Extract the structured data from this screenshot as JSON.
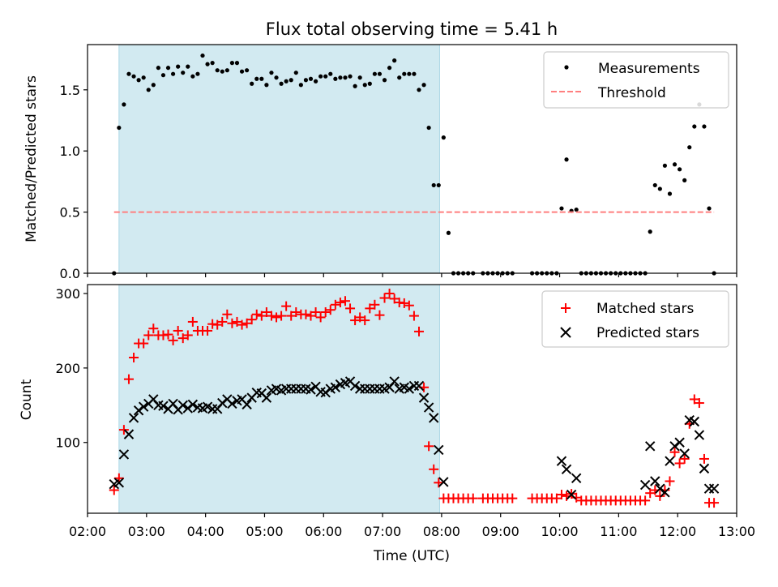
{
  "figure_title": "Flux total observing time = 5.41 h",
  "chart_data": [
    {
      "type": "scatter",
      "ylabel": "Matched/Predicted stars",
      "xlabel": "",
      "xlim": [
        "02:00",
        "13:00"
      ],
      "ylim": [
        0,
        1.87
      ],
      "yticks": [
        0.0,
        0.5,
        1.0,
        1.5
      ],
      "ytick_labels": [
        "0.0",
        "0.5",
        "1.0",
        "1.5"
      ],
      "shaded_interval": [
        "02:32",
        "07:58"
      ],
      "shade_color": "#add8e6",
      "legend_position": "upper right",
      "series": [
        {
          "name": "Measurements",
          "marker": "dot",
          "color": "#000000",
          "x": [
            "02:27",
            "02:32",
            "02:37",
            "02:42",
            "02:47",
            "02:52",
            "02:57",
            "03:02",
            "03:07",
            "03:12",
            "03:17",
            "03:22",
            "03:27",
            "03:32",
            "03:37",
            "03:42",
            "03:47",
            "03:52",
            "03:57",
            "04:02",
            "04:07",
            "04:12",
            "04:17",
            "04:22",
            "04:27",
            "04:32",
            "04:37",
            "04:42",
            "04:47",
            "04:52",
            "04:57",
            "05:02",
            "05:07",
            "05:12",
            "05:17",
            "05:22",
            "05:27",
            "05:32",
            "05:37",
            "05:42",
            "05:47",
            "05:52",
            "05:57",
            "06:02",
            "06:07",
            "06:12",
            "06:17",
            "06:22",
            "06:27",
            "06:32",
            "06:37",
            "06:42",
            "06:47",
            "06:52",
            "06:57",
            "07:02",
            "07:07",
            "07:12",
            "07:17",
            "07:22",
            "07:27",
            "07:32",
            "07:37",
            "07:42",
            "07:47",
            "07:52",
            "07:57",
            "08:02",
            "08:07",
            "08:12",
            "08:17",
            "08:22",
            "08:27",
            "08:32",
            "08:42",
            "08:47",
            "08:52",
            "08:57",
            "09:02",
            "09:07",
            "09:12",
            "09:32",
            "09:37",
            "09:42",
            "09:47",
            "09:52",
            "09:57",
            "10:02",
            "10:07",
            "10:12",
            "10:17",
            "10:22",
            "10:27",
            "10:32",
            "10:37",
            "10:42",
            "10:47",
            "10:52",
            "10:57",
            "11:02",
            "11:07",
            "11:12",
            "11:17",
            "11:22",
            "11:27",
            "11:32",
            "11:37",
            "11:42",
            "11:47",
            "11:52",
            "11:57",
            "12:02",
            "12:07",
            "12:12",
            "12:17",
            "12:22",
            "12:27",
            "12:32",
            "12:37"
          ],
          "y": [
            0.0,
            1.19,
            1.38,
            1.63,
            1.61,
            1.58,
            1.6,
            1.5,
            1.54,
            1.68,
            1.62,
            1.68,
            1.63,
            1.69,
            1.64,
            1.69,
            1.61,
            1.63,
            1.78,
            1.71,
            1.72,
            1.66,
            1.65,
            1.66,
            1.72,
            1.72,
            1.65,
            1.66,
            1.55,
            1.59,
            1.59,
            1.54,
            1.64,
            1.6,
            1.55,
            1.57,
            1.58,
            1.64,
            1.54,
            1.58,
            1.59,
            1.57,
            1.61,
            1.61,
            1.63,
            1.59,
            1.6,
            1.6,
            1.61,
            1.53,
            1.6,
            1.54,
            1.55,
            1.63,
            1.63,
            1.58,
            1.68,
            1.74,
            1.6,
            1.63,
            1.63,
            1.63,
            1.5,
            1.54,
            1.19,
            0.72,
            0.72,
            1.11,
            0.33,
            0.0,
            0.0,
            0.0,
            0.0,
            0.0,
            0.0,
            0.0,
            0.0,
            0.0,
            0.0,
            0.0,
            0.0,
            0.0,
            0.0,
            0.0,
            0.0,
            0.0,
            0.0,
            0.53,
            0.93,
            0.51,
            0.52,
            0.0,
            0.0,
            0.0,
            0.0,
            0.0,
            0.0,
            0.0,
            0.0,
            0.0,
            0.0,
            0.0,
            0.0,
            0.0,
            0.0,
            0.34,
            0.72,
            0.69,
            0.88,
            0.65,
            0.89,
            0.85,
            0.76,
            1.03,
            1.2,
            1.38,
            1.2,
            0.53,
            0.0
          ]
        },
        {
          "name": "Threshold",
          "type": "line",
          "style": "dashed",
          "color": "#ff7f7f",
          "x": [
            "02:27",
            "12:37"
          ],
          "y": [
            0.5,
            0.5
          ]
        }
      ]
    },
    {
      "type": "scatter",
      "ylabel": "Count",
      "xlabel": "Time (UTC)",
      "xlim": [
        "02:00",
        "13:00"
      ],
      "ylim": [
        5,
        312
      ],
      "yticks": [
        100,
        200,
        300
      ],
      "ytick_labels": [
        "100",
        "200",
        "300"
      ],
      "xticks": [
        "02:00",
        "03:00",
        "04:00",
        "05:00",
        "06:00",
        "07:00",
        "08:00",
        "09:00",
        "10:00",
        "11:00",
        "12:00",
        "13:00"
      ],
      "shaded_interval": [
        "02:32",
        "07:58"
      ],
      "shade_color": "#add8e6",
      "legend_position": "upper right",
      "series": [
        {
          "name": "Matched stars",
          "marker": "plus",
          "color": "#ff0000",
          "x": [
            "02:27",
            "02:32",
            "02:37",
            "02:42",
            "02:47",
            "02:52",
            "02:57",
            "03:02",
            "03:07",
            "03:12",
            "03:17",
            "03:22",
            "03:27",
            "03:32",
            "03:37",
            "03:42",
            "03:47",
            "03:52",
            "03:57",
            "04:02",
            "04:07",
            "04:12",
            "04:17",
            "04:22",
            "04:27",
            "04:32",
            "04:37",
            "04:42",
            "04:47",
            "04:52",
            "04:57",
            "05:02",
            "05:07",
            "05:12",
            "05:17",
            "05:22",
            "05:27",
            "05:32",
            "05:37",
            "05:42",
            "05:47",
            "05:52",
            "05:57",
            "06:02",
            "06:07",
            "06:12",
            "06:17",
            "06:22",
            "06:27",
            "06:32",
            "06:37",
            "06:42",
            "06:47",
            "06:52",
            "06:57",
            "07:02",
            "07:07",
            "07:12",
            "07:17",
            "07:22",
            "07:27",
            "07:32",
            "07:37",
            "07:42",
            "07:47",
            "07:52",
            "07:57",
            "08:02",
            "08:07",
            "08:12",
            "08:17",
            "08:22",
            "08:27",
            "08:32",
            "08:42",
            "08:47",
            "08:52",
            "08:57",
            "09:02",
            "09:07",
            "09:12",
            "09:32",
            "09:37",
            "09:42",
            "09:47",
            "09:52",
            "09:57",
            "10:02",
            "10:07",
            "10:12",
            "10:17",
            "10:22",
            "10:27",
            "10:32",
            "10:37",
            "10:42",
            "10:47",
            "10:52",
            "10:57",
            "11:02",
            "11:07",
            "11:12",
            "11:17",
            "11:22",
            "11:27",
            "11:32",
            "11:37",
            "11:42",
            "11:47",
            "11:52",
            "11:57",
            "12:02",
            "12:07",
            "12:12",
            "12:17",
            "12:22",
            "12:27",
            "12:32",
            "12:37"
          ],
          "y": [
            36,
            52,
            117,
            185,
            214,
            233,
            233,
            244,
            253,
            244,
            244,
            245,
            237,
            250,
            240,
            244,
            262,
            250,
            250,
            250,
            259,
            258,
            262,
            272,
            260,
            262,
            258,
            260,
            265,
            272,
            270,
            275,
            270,
            268,
            270,
            283,
            270,
            275,
            272,
            272,
            270,
            275,
            268,
            275,
            278,
            285,
            288,
            290,
            280,
            264,
            268,
            264,
            280,
            285,
            271,
            294,
            300,
            293,
            288,
            287,
            284,
            270,
            249,
            174,
            95,
            64,
            46,
            25,
            25,
            25,
            25,
            25,
            25,
            25,
            25,
            25,
            25,
            25,
            25,
            25,
            25,
            25,
            25,
            25,
            25,
            25,
            25,
            30,
            28,
            31,
            26,
            22,
            22,
            22,
            22,
            22,
            22,
            22,
            22,
            22,
            22,
            22,
            22,
            22,
            22,
            32,
            36,
            28,
            36,
            48,
            87,
            72,
            78,
            125,
            158,
            153,
            78,
            19,
            19
          ]
        },
        {
          "name": "Predicted stars",
          "marker": "x",
          "color": "#000000",
          "x": [
            "02:27",
            "02:32",
            "02:37",
            "02:42",
            "02:47",
            "02:52",
            "02:57",
            "03:02",
            "03:07",
            "03:12",
            "03:17",
            "03:22",
            "03:27",
            "03:32",
            "03:37",
            "03:42",
            "03:47",
            "03:52",
            "03:57",
            "04:02",
            "04:07",
            "04:12",
            "04:17",
            "04:22",
            "04:27",
            "04:32",
            "04:37",
            "04:42",
            "04:47",
            "04:52",
            "04:57",
            "05:02",
            "05:07",
            "05:12",
            "05:17",
            "05:22",
            "05:27",
            "05:32",
            "05:37",
            "05:42",
            "05:47",
            "05:52",
            "05:57",
            "06:02",
            "06:07",
            "06:12",
            "06:17",
            "06:22",
            "06:27",
            "06:32",
            "06:37",
            "06:42",
            "06:47",
            "06:52",
            "06:57",
            "07:02",
            "07:07",
            "07:12",
            "07:17",
            "07:22",
            "07:27",
            "07:32",
            "07:37",
            "07:42",
            "07:47",
            "07:52",
            "07:57",
            "08:02",
            "10:02",
            "10:07",
            "10:12",
            "10:17",
            "11:27",
            "11:32",
            "11:37",
            "11:42",
            "11:47",
            "11:52",
            "11:57",
            "12:02",
            "12:07",
            "12:12",
            "12:17",
            "12:22",
            "12:27",
            "12:32",
            "12:37"
          ],
          "y": [
            44,
            46,
            84,
            111,
            133,
            143,
            148,
            152,
            158,
            150,
            149,
            145,
            152,
            144,
            150,
            146,
            151,
            147,
            146,
            148,
            145,
            145,
            153,
            158,
            152,
            156,
            158,
            151,
            160,
            167,
            166,
            160,
            170,
            172,
            170,
            172,
            172,
            172,
            172,
            172,
            171,
            175,
            168,
            167,
            172,
            174,
            178,
            180,
            182,
            176,
            172,
            172,
            172,
            172,
            172,
            172,
            174,
            182,
            172,
            174,
            172,
            176,
            176,
            160,
            147,
            133,
            90,
            47,
            75,
            64,
            30,
            52,
            43,
            95,
            48,
            38,
            33,
            75,
            95,
            100,
            85,
            130,
            128,
            110,
            65,
            38,
            38
          ]
        }
      ]
    }
  ]
}
